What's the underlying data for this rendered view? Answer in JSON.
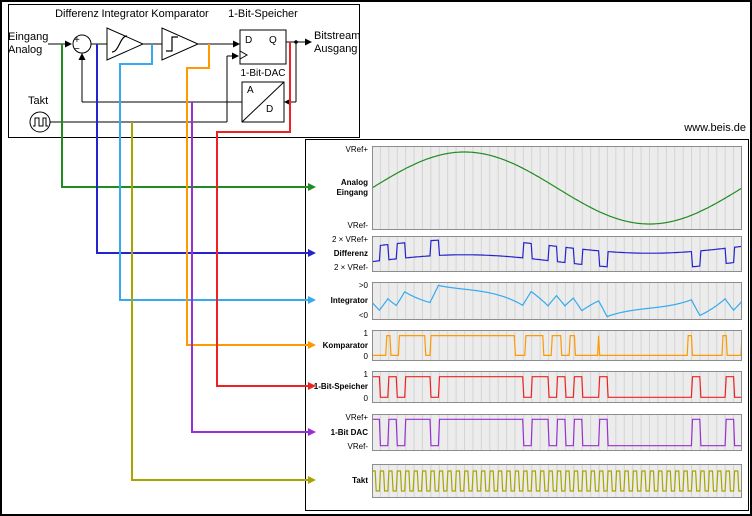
{
  "watermark": "www.beis.de",
  "diagram": {
    "differenz": "Differenz",
    "integrator": "Integrator",
    "komparator": "Komparator",
    "speicher": "1-Bit-Speicher",
    "dac": "1-Bit-DAC",
    "input": "Eingang\nAnalog",
    "output": "Bitstream\nAusgang",
    "takt": "Takt",
    "ff_d": "D",
    "ff_q": "Q",
    "dac_a": "A",
    "dac_d": "D",
    "sum_plus": "+",
    "sum_minus": "−"
  },
  "sim": {
    "clocks": 44,
    "substeps": 8,
    "amplitude": 0.9,
    "gain": 1.0
  },
  "waveforms": [
    {
      "name": "Analog\nEingang",
      "signal": "analog",
      "color": "#1f8c1f",
      "top_label": "VRef+",
      "bottom_label": "VRef-"
    },
    {
      "name": "Differenz",
      "signal": "differenz",
      "color": "#2424cc",
      "top_label": "2 × VRef+",
      "bottom_label": "2 × VRef-"
    },
    {
      "name": "Integrator",
      "signal": "integrator",
      "color": "#35aaee",
      "top_label": ">0",
      "bottom_label": "<0"
    },
    {
      "name": "Komparator",
      "signal": "komparator",
      "color": "#ff9900",
      "top_label": "1",
      "bottom_label": "0"
    },
    {
      "name": "1-Bit-Speicher",
      "signal": "speicher",
      "color": "#ee2222",
      "top_label": "1",
      "bottom_label": "0"
    },
    {
      "name": "1-Bit DAC",
      "signal": "dac",
      "color": "#9a2fd2",
      "top_label": "VRef+",
      "bottom_label": "VRef-"
    },
    {
      "name": "Takt",
      "signal": "takt",
      "color": "#a8a400",
      "top_label": "",
      "bottom_label": ""
    }
  ],
  "plot_style": {
    "background": "#ececec",
    "gridline": "#d4d4d4",
    "border": "#8c8c8c"
  }
}
